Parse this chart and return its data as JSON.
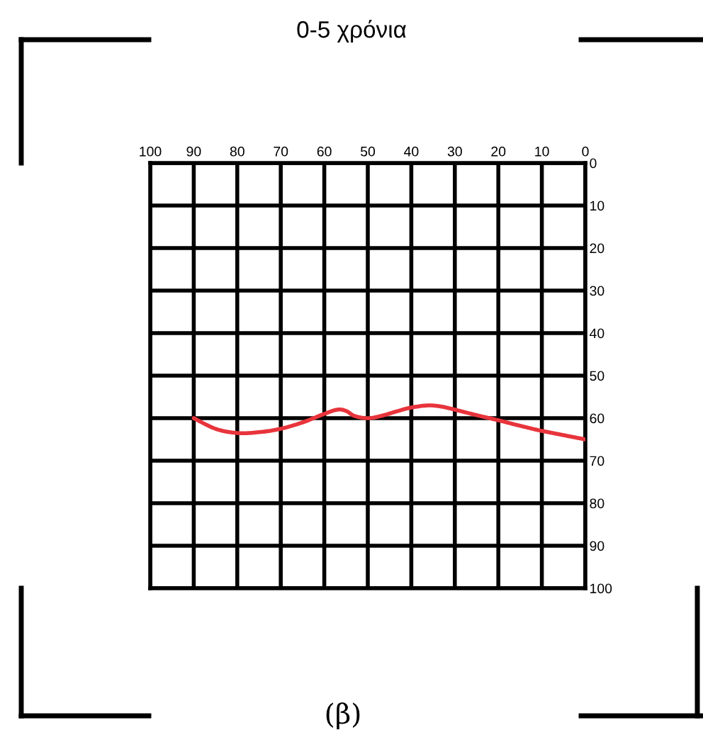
{
  "chart_data": {
    "type": "line",
    "title": "0-5 χρόνια",
    "annotations": [
      "(β)"
    ],
    "xlim": [
      100,
      0
    ],
    "xticks": [
      100,
      90,
      80,
      70,
      60,
      50,
      40,
      30,
      20,
      10,
      0
    ],
    "ylim": [
      100,
      0
    ],
    "yticks": [
      0,
      10,
      20,
      30,
      40,
      50,
      60,
      70,
      80,
      90,
      100
    ],
    "grid": true,
    "series": [
      {
        "color": "#e8343c",
        "x": [
          90,
          85,
          80,
          75,
          70,
          65,
          60,
          57,
          55,
          53,
          50,
          47,
          43,
          40,
          36,
          33,
          30,
          25,
          20,
          15,
          10,
          5,
          0
        ],
        "values": [
          60,
          62.5,
          63.5,
          63.3,
          62.5,
          61,
          59,
          58,
          58.3,
          59.5,
          60,
          59.5,
          58.3,
          57.5,
          57,
          57.3,
          58,
          59.3,
          60.5,
          61.8,
          63,
          64,
          65
        ]
      }
    ]
  }
}
